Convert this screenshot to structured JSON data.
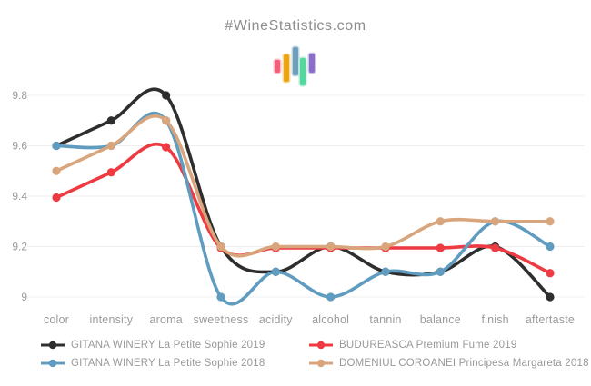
{
  "header": {
    "title": "#WineStatistics.com"
  },
  "logo": {
    "bars": [
      {
        "name": "pink-bar",
        "color": "#f2607a",
        "halo": "#fac0cc"
      },
      {
        "name": "orange-bar",
        "color": "#eda414",
        "halo": "#f7dd9b"
      },
      {
        "name": "blue-bar",
        "color": "#6f9fbd",
        "halo": "#c2d7e4"
      },
      {
        "name": "green-bar",
        "color": "#54d69e",
        "halo": "#b4eed6"
      },
      {
        "name": "purple-bar",
        "color": "#8a6fc8",
        "halo": "#cfc3ea"
      }
    ]
  },
  "chart_data": {
    "type": "line",
    "title": "#WineStatistics.com",
    "categories": [
      "color",
      "intensity",
      "aroma",
      "sweetness",
      "acidity",
      "alcohol",
      "tannin",
      "balance",
      "finish",
      "aftertaste"
    ],
    "series": [
      {
        "name": "GITANA WINERY La Petite Sophie 2019",
        "color": "#2e2e2e",
        "values": [
          9.6,
          9.7,
          9.8,
          9.2,
          9.1,
          9.2,
          9.1,
          9.1,
          9.2,
          9.0
        ]
      },
      {
        "name": "BUDUREASCA Premium Fume 2019",
        "color": "#ee3a41",
        "values": [
          9.4,
          9.5,
          9.6,
          9.2,
          9.2,
          9.2,
          9.2,
          9.2,
          9.2,
          9.1
        ]
      },
      {
        "name": "GITANA WINERY La Petite Sophie 2018",
        "color": "#5f9cbf",
        "values": [
          9.6,
          9.6,
          9.7,
          9.0,
          9.1,
          9.0,
          9.1,
          9.1,
          9.3,
          9.2
        ]
      },
      {
        "name": "DOMENIUL COROANEI Principesa Margareta 2018",
        "color": "#d8a57d",
        "values": [
          9.5,
          9.6,
          9.7,
          9.2,
          9.2,
          9.2,
          9.2,
          9.3,
          9.3,
          9.3
        ]
      }
    ],
    "ylim": [
      9.0,
      9.8
    ],
    "yticks": [
      9.8,
      9.6,
      9.4,
      9.2,
      9
    ],
    "ytick_labels": [
      "9.8",
      "9.6",
      "9.4",
      "9.2",
      "9"
    ],
    "xlabel": "",
    "ylabel": "",
    "grid": true,
    "legend_position": "bottom"
  },
  "colors": {
    "background": "#ffffff",
    "grid_line": "#efefef",
    "axis_text": "#9b9b9b",
    "legend_text": "#999999",
    "title_text": "#8d8d8d"
  }
}
